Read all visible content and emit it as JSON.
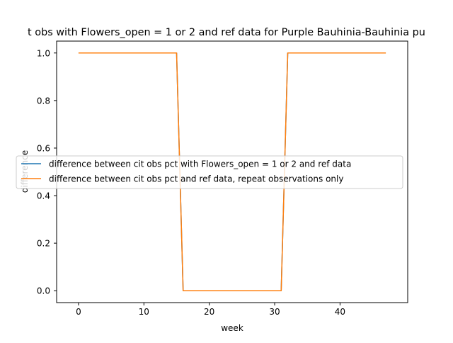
{
  "chart_data": {
    "type": "line",
    "title": "t obs with Flowers_open = 1 or 2 and ref data for Purple Bauhinia-Bauhinia pu",
    "xlabel": "week",
    "ylabel": "difference",
    "xlim": [
      -3.35,
      50.35
    ],
    "ylim": [
      -0.05,
      1.05
    ],
    "xticks": [
      0,
      10,
      20,
      30,
      40
    ],
    "yticks": [
      0.0,
      0.2,
      0.4,
      0.6,
      0.8,
      1.0
    ],
    "xtick_labels": [
      "0",
      "10",
      "20",
      "30",
      "40"
    ],
    "ytick_labels": [
      "0.0",
      "0.2",
      "0.4",
      "0.6",
      "0.8",
      "1.0"
    ],
    "grid": false,
    "legend_position": "center-left",
    "series": [
      {
        "name": "difference between cit obs pct with Flowers_open = 1 or 2 and ref data",
        "color": "#1f77b4",
        "x": [
          0,
          15,
          16,
          31,
          32,
          47
        ],
        "y": [
          1,
          1,
          0,
          0,
          1,
          1
        ]
      },
      {
        "name": "difference between cit obs pct and ref data, repeat observations only",
        "color": "#ff7f0e",
        "x": [
          0,
          15,
          16,
          31,
          32,
          47
        ],
        "y": [
          1,
          1,
          0,
          0,
          1,
          1
        ]
      }
    ]
  }
}
